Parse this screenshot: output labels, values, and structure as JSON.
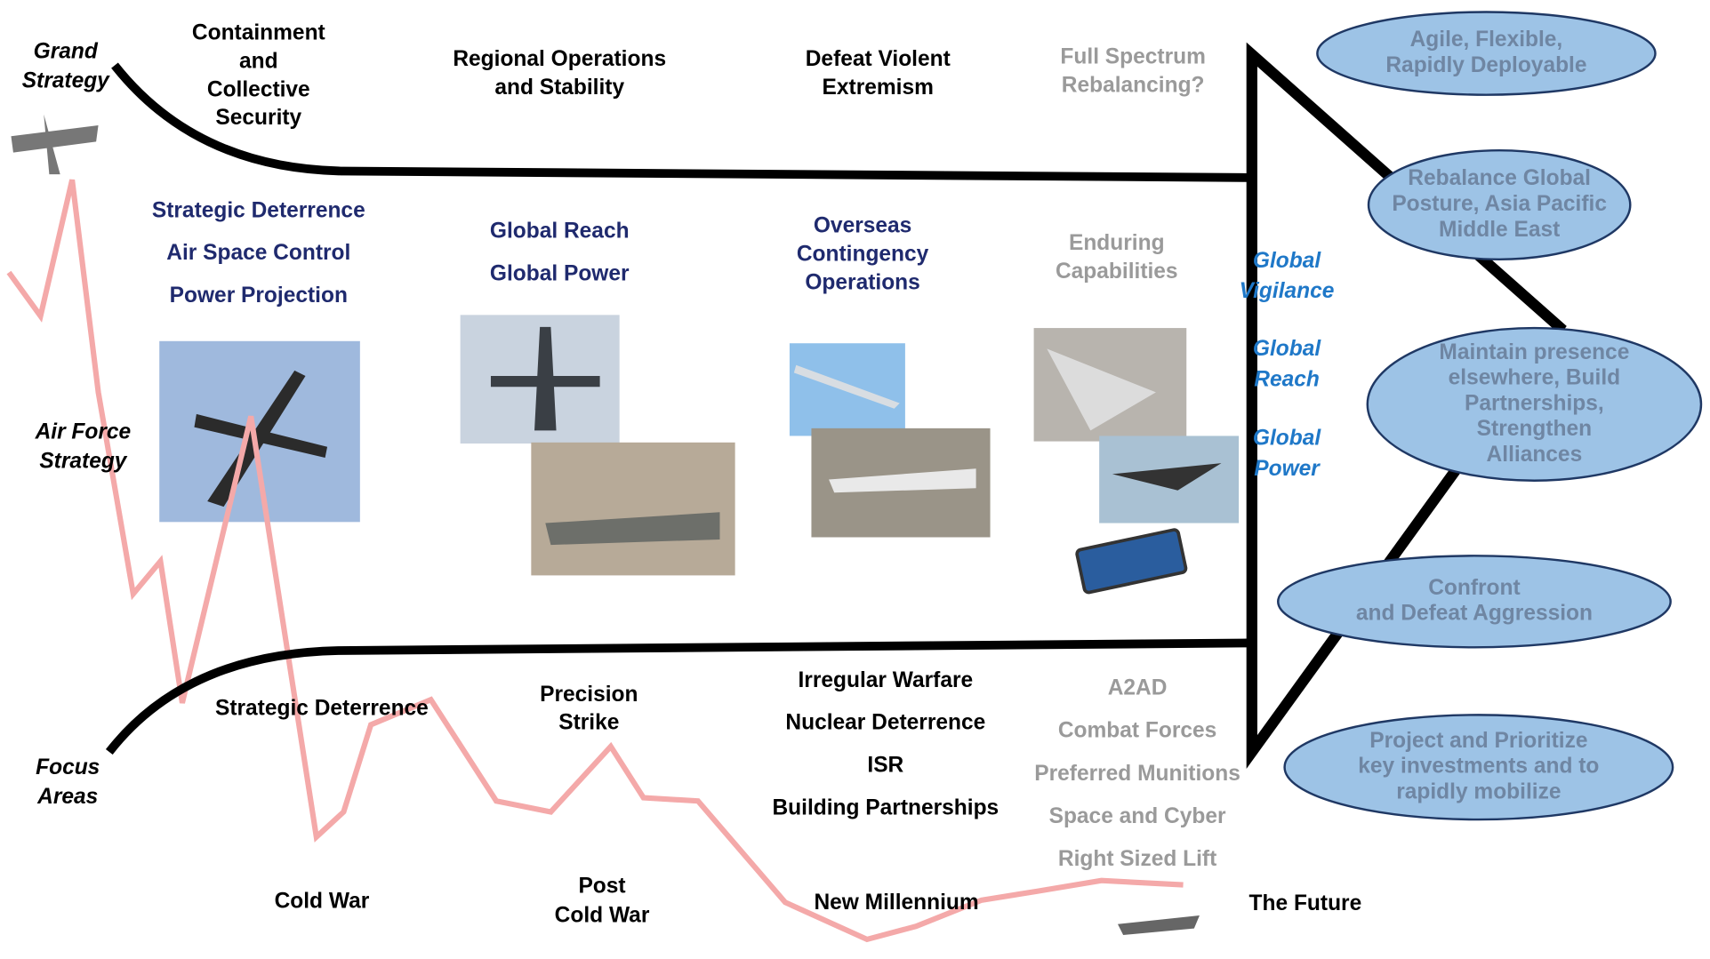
{
  "row_labels": {
    "grand_strategy": [
      "Grand",
      "Strategy"
    ],
    "air_force_strategy": [
      "Air Force",
      "Strategy"
    ],
    "focus_areas": [
      "Focus",
      "Areas"
    ]
  },
  "eras": [
    {
      "grand_strategy": [
        "Containment",
        "and",
        "Collective",
        "Security"
      ],
      "air_force_strategy": [
        "Strategic Deterrence",
        "Air Space Control",
        "Power Projection"
      ],
      "focus_areas": [
        "Strategic Deterrence"
      ],
      "name": [
        "Cold War"
      ]
    },
    {
      "grand_strategy": [
        "Regional Operations",
        "and Stability"
      ],
      "air_force_strategy": [
        "Global Reach",
        "Global Power"
      ],
      "focus_areas": [
        "Precision",
        "Strike"
      ],
      "name": [
        "Post",
        "Cold War"
      ]
    },
    {
      "grand_strategy": [
        "Defeat Violent",
        "Extremism"
      ],
      "air_force_strategy": [
        "Overseas",
        "Contingency",
        "Operations"
      ],
      "focus_areas": [
        "Irregular Warfare",
        "Nuclear Deterrence",
        "ISR",
        "Building Partnerships"
      ],
      "name": [
        "New Millennium"
      ]
    },
    {
      "grand_strategy": [
        "Full Spectrum",
        "Rebalancing?"
      ],
      "air_force_strategy": [
        "Enduring",
        "Capabilities"
      ],
      "focus_areas": [
        "A2AD",
        "Combat Forces",
        "Preferred Munitions",
        "Space and Cyber",
        "Right Sized Lift"
      ],
      "name": [
        "The Future"
      ]
    }
  ],
  "future_strategy": [
    [
      "Global",
      "Vigilance"
    ],
    [
      "Global",
      "Reach"
    ],
    [
      "Global",
      "Power"
    ]
  ],
  "future_priorities": [
    [
      "Agile, Flexible,",
      "Rapidly Deployable"
    ],
    [
      "Rebalance Global",
      "Posture, Asia Pacific",
      "Middle East"
    ],
    [
      "Maintain presence",
      "elsewhere, Build",
      "Partnerships,",
      "Strengthen",
      "Alliances"
    ],
    [
      "Confront",
      "and Defeat Aggression"
    ],
    [
      "Project and Prioritize",
      "key investments and to",
      "rapidly mobilize"
    ]
  ]
}
